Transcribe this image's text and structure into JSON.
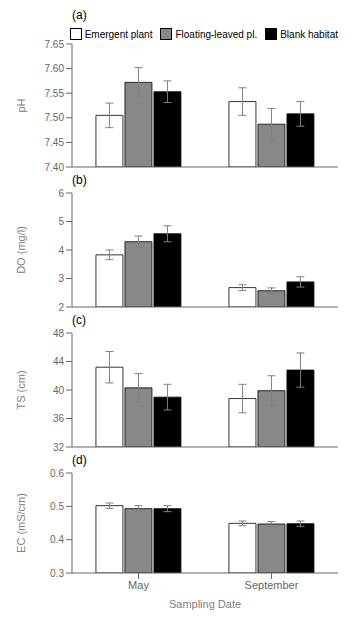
{
  "chart_data": [
    {
      "type": "bar",
      "title": "(a)",
      "ylabel": "pH",
      "categories": [
        "May",
        "September"
      ],
      "series": [
        {
          "name": "Emergent plant",
          "color": "white",
          "values": [
            7.505,
            7.533
          ],
          "errors": [
            0.025,
            0.028
          ]
        },
        {
          "name": "Floating-leaved pl.",
          "color": "#888888",
          "values": [
            7.572,
            7.487
          ],
          "errors": [
            0.03,
            0.032
          ]
        },
        {
          "name": "Blank habitat",
          "color": "black",
          "values": [
            7.553,
            7.508
          ],
          "errors": [
            0.022,
            0.025
          ]
        }
      ],
      "ylim": [
        7.4,
        7.65
      ],
      "yticks": [
        {
          "value": 7.4,
          "label": "7.40"
        },
        7.45,
        {
          "value": 7.5,
          "label": "7.50"
        },
        7.55,
        {
          "value": 7.6,
          "label": "7.60"
        },
        7.65
      ],
      "legend": "upper right",
      "tick_labels": "y"
    },
    {
      "type": "bar",
      "title": "(b)",
      "ylabel": "DO (mg/l)",
      "categories": [
        "May",
        "September"
      ],
      "series": [
        {
          "name": "Emergent plant",
          "color": "white",
          "values": [
            3.83,
            2.68
          ],
          "errors": [
            0.17,
            0.1
          ]
        },
        {
          "name": "Floating-leaved pl.",
          "color": "#888888",
          "values": [
            4.29,
            2.57
          ],
          "errors": [
            0.2,
            0.1
          ]
        },
        {
          "name": "Blank habitat",
          "color": "black",
          "values": [
            4.57,
            2.88
          ],
          "errors": [
            0.28,
            0.18
          ]
        }
      ],
      "ylim": [
        2,
        6
      ],
      "yticks": [
        2,
        3,
        4,
        5,
        6
      ],
      "tick_labels": "y"
    },
    {
      "type": "bar",
      "title": "(c)",
      "ylabel": "TS (cm)",
      "categories": [
        "May",
        "September"
      ],
      "series": [
        {
          "name": "Emergent plant",
          "color": "white",
          "values": [
            43.2,
            38.8
          ],
          "errors": [
            2.2,
            2.0
          ]
        },
        {
          "name": "Floating-leaved pl.",
          "color": "#888888",
          "values": [
            40.3,
            39.9
          ],
          "errors": [
            2.0,
            2.1
          ]
        },
        {
          "name": "Blank habitat",
          "color": "black",
          "values": [
            39.0,
            42.8
          ],
          "errors": [
            1.8,
            2.4
          ]
        }
      ],
      "ylim": [
        32,
        48
      ],
      "yticks": [
        32,
        36,
        40,
        44,
        48
      ],
      "tick_labels": "y"
    },
    {
      "type": "bar",
      "title": "(d)",
      "ylabel": "EC (mS/cm)",
      "xlabel": "Sampling Date",
      "categories": [
        "May",
        "September"
      ],
      "series": [
        {
          "name": "Emergent plant",
          "color": "white",
          "values": [
            0.502,
            0.449
          ],
          "errors": [
            0.008,
            0.007
          ]
        },
        {
          "name": "Floating-leaved pl.",
          "color": "#888888",
          "values": [
            0.493,
            0.447
          ],
          "errors": [
            0.009,
            0.007
          ]
        },
        {
          "name": "Blank habitat",
          "color": "black",
          "values": [
            0.493,
            0.448
          ],
          "errors": [
            0.009,
            0.008
          ]
        }
      ],
      "ylim": [
        0.3,
        0.6
      ],
      "yticks": [
        0.3,
        0.4,
        0.5,
        0.6
      ]
    }
  ]
}
